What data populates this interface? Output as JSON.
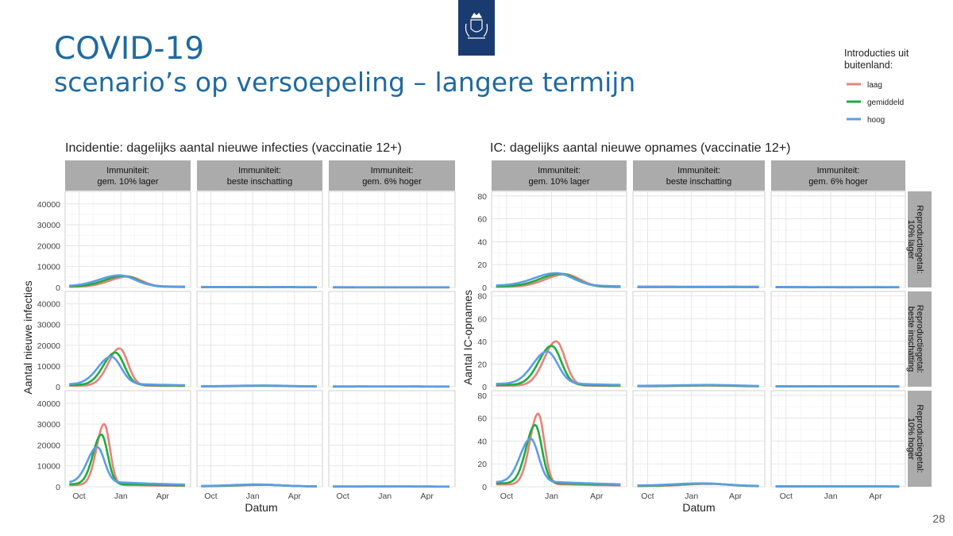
{
  "slide": {
    "title_line1": "COVID-19",
    "title_line2": "scenario’s op versoepeling – langere termijn",
    "page_number": "28",
    "logo_icon": "coat-of-arms-icon"
  },
  "legend": {
    "title_line1": "Introducties uit",
    "title_line2": "buitenland:",
    "items": [
      {
        "label": "laag",
        "color": "#e8827b"
      },
      {
        "label": "gemiddeld",
        "color": "#1fab3d"
      },
      {
        "label": "hoog",
        "color": "#5b9ee6"
      }
    ]
  },
  "facets": {
    "columns": [
      {
        "line1": "Immuniteit:",
        "line2": "gem. 10% lager"
      },
      {
        "line1": "Immuniteit:",
        "line2": "beste inschatting"
      },
      {
        "line1": "Immuniteit:",
        "line2": "gem. 6% hoger"
      }
    ],
    "rows": [
      {
        "line1": "Reproductiegetal:",
        "line2": "10% lager"
      },
      {
        "line1": "Reproductiegetal:",
        "line2": "beste inschatting"
      },
      {
        "line1": "Reproductiegetal:",
        "line2": "10% hoger"
      }
    ]
  },
  "chart_data": [
    {
      "type": "line",
      "title": "Incidentie: dagelijks aantal nieuwe infecties (vaccinatie 12+)",
      "xlabel": "Datum",
      "ylabel": "Aantal nieuwe infecties",
      "x_ticks": [
        "Oct",
        "Jan",
        "Apr"
      ],
      "x_tick_months": [
        1,
        4,
        7
      ],
      "xlim_months": [
        0,
        9
      ],
      "y_ticks": [
        0,
        10000,
        20000,
        30000,
        40000
      ],
      "ylim": [
        0,
        46000
      ],
      "grid": true,
      "panels": [
        {
          "row": 0,
          "col": 0,
          "series": [
            {
              "legend": "laag",
              "peak_month": 4.5,
              "peak": 5200,
              "width": 1.3,
              "base": 300
            },
            {
              "legend": "gemiddeld",
              "peak_month": 4.2,
              "peak": 5500,
              "width": 1.35,
              "base": 400
            },
            {
              "legend": "hoog",
              "peak_month": 3.9,
              "peak": 5800,
              "width": 1.45,
              "base": 600
            }
          ]
        },
        {
          "row": 0,
          "col": 1,
          "series": [
            {
              "legend": "laag",
              "peak_month": 4.5,
              "peak": 100,
              "width": 2.5,
              "base": 100
            },
            {
              "legend": "gemiddeld",
              "peak_month": 4.5,
              "peak": 150,
              "width": 2.5,
              "base": 150
            },
            {
              "legend": "hoog",
              "peak_month": 4.5,
              "peak": 200,
              "width": 2.5,
              "base": 250
            }
          ]
        },
        {
          "row": 0,
          "col": 2,
          "series": [
            {
              "legend": "laag",
              "peak_month": 4.5,
              "peak": 50,
              "width": 2.5,
              "base": 50
            },
            {
              "legend": "gemiddeld",
              "peak_month": 4.5,
              "peak": 80,
              "width": 2.5,
              "base": 80
            },
            {
              "legend": "hoog",
              "peak_month": 4.5,
              "peak": 120,
              "width": 2.5,
              "base": 150
            }
          ]
        },
        {
          "row": 1,
          "col": 0,
          "series": [
            {
              "legend": "laag",
              "peak_month": 3.9,
              "peak": 18500,
              "width": 0.8,
              "base": 500
            },
            {
              "legend": "gemiddeld",
              "peak_month": 3.6,
              "peak": 16500,
              "width": 0.85,
              "base": 800
            },
            {
              "legend": "hoog",
              "peak_month": 3.3,
              "peak": 14500,
              "width": 0.95,
              "base": 1200
            }
          ]
        },
        {
          "row": 1,
          "col": 1,
          "series": [
            {
              "legend": "laag",
              "peak_month": 4.8,
              "peak": 400,
              "width": 2.0,
              "base": 100
            },
            {
              "legend": "gemiddeld",
              "peak_month": 4.8,
              "peak": 500,
              "width": 2.0,
              "base": 150
            },
            {
              "legend": "hoog",
              "peak_month": 4.8,
              "peak": 600,
              "width": 2.0,
              "base": 200
            }
          ]
        },
        {
          "row": 1,
          "col": 2,
          "series": [
            {
              "legend": "laag",
              "peak_month": 4.5,
              "peak": 80,
              "width": 2.5,
              "base": 60
            },
            {
              "legend": "gemiddeld",
              "peak_month": 4.5,
              "peak": 100,
              "width": 2.5,
              "base": 90
            },
            {
              "legend": "hoog",
              "peak_month": 4.5,
              "peak": 130,
              "width": 2.5,
              "base": 150
            }
          ]
        },
        {
          "row": 2,
          "col": 0,
          "series": [
            {
              "legend": "laag",
              "peak_month": 2.8,
              "peak": 30000,
              "width": 0.55,
              "base": 800
            },
            {
              "legend": "gemiddeld",
              "peak_month": 2.6,
              "peak": 25000,
              "width": 0.6,
              "base": 1200
            },
            {
              "legend": "hoog",
              "peak_month": 2.3,
              "peak": 19000,
              "width": 0.7,
              "base": 2000
            }
          ]
        },
        {
          "row": 2,
          "col": 1,
          "series": [
            {
              "legend": "laag",
              "peak_month": 4.8,
              "peak": 900,
              "width": 1.8,
              "base": 200
            },
            {
              "legend": "gemiddeld",
              "peak_month": 4.6,
              "peak": 1000,
              "width": 1.8,
              "base": 250
            },
            {
              "legend": "hoog",
              "peak_month": 4.3,
              "peak": 1100,
              "width": 1.9,
              "base": 300
            }
          ]
        },
        {
          "row": 2,
          "col": 2,
          "series": [
            {
              "legend": "laag",
              "peak_month": 4.5,
              "peak": 100,
              "width": 2.5,
              "base": 80
            },
            {
              "legend": "gemiddeld",
              "peak_month": 4.5,
              "peak": 120,
              "width": 2.5,
              "base": 100
            },
            {
              "legend": "hoog",
              "peak_month": 4.5,
              "peak": 150,
              "width": 2.5,
              "base": 160
            }
          ]
        }
      ]
    },
    {
      "type": "line",
      "title": "IC: dagelijks aantal nieuwe opnames (vaccinatie 12+)",
      "xlabel": "Datum",
      "ylabel": "Aantal IC-opnames",
      "x_ticks": [
        "Oct",
        "Jan",
        "Apr"
      ],
      "x_tick_months": [
        1,
        4,
        7
      ],
      "xlim_months": [
        0,
        9
      ],
      "y_ticks": [
        0,
        20,
        40,
        60,
        80
      ],
      "ylim": [
        0,
        84
      ],
      "grid": true,
      "panels": [
        {
          "row": 0,
          "col": 0,
          "series": [
            {
              "legend": "laag",
              "peak_month": 4.9,
              "peak": 11.5,
              "width": 1.3,
              "base": 0.5
            },
            {
              "legend": "gemiddeld",
              "peak_month": 4.6,
              "peak": 12,
              "width": 1.35,
              "base": 0.8
            },
            {
              "legend": "hoog",
              "peak_month": 4.3,
              "peak": 12.5,
              "width": 1.45,
              "base": 1.5
            }
          ]
        },
        {
          "row": 0,
          "col": 1,
          "series": [
            {
              "legend": "laag",
              "peak_month": 5.0,
              "peak": 0.3,
              "width": 2.5,
              "base": 0.3
            },
            {
              "legend": "gemiddeld",
              "peak_month": 5.0,
              "peak": 0.5,
              "width": 2.5,
              "base": 0.5
            },
            {
              "legend": "hoog",
              "peak_month": 5.0,
              "peak": 0.7,
              "width": 2.5,
              "base": 0.8
            }
          ]
        },
        {
          "row": 0,
          "col": 2,
          "series": [
            {
              "legend": "laag",
              "peak_month": 5.0,
              "peak": 0.1,
              "width": 2.5,
              "base": 0.2
            },
            {
              "legend": "gemiddeld",
              "peak_month": 5.0,
              "peak": 0.2,
              "width": 2.5,
              "base": 0.3
            },
            {
              "legend": "hoog",
              "peak_month": 5.0,
              "peak": 0.3,
              "width": 2.5,
              "base": 0.5
            }
          ]
        },
        {
          "row": 1,
          "col": 0,
          "series": [
            {
              "legend": "laag",
              "peak_month": 4.3,
              "peak": 40,
              "width": 0.8,
              "base": 1
            },
            {
              "legend": "gemiddeld",
              "peak_month": 4.0,
              "peak": 36,
              "width": 0.85,
              "base": 1.5
            },
            {
              "legend": "hoog",
              "peak_month": 3.7,
              "peak": 31,
              "width": 0.95,
              "base": 2.5
            }
          ]
        },
        {
          "row": 1,
          "col": 1,
          "series": [
            {
              "legend": "laag",
              "peak_month": 5.2,
              "peak": 1,
              "width": 2.0,
              "base": 0.3
            },
            {
              "legend": "gemiddeld",
              "peak_month": 5.2,
              "peak": 1.3,
              "width": 2.0,
              "base": 0.5
            },
            {
              "legend": "hoog",
              "peak_month": 5.2,
              "peak": 1.6,
              "width": 2.0,
              "base": 0.8
            }
          ]
        },
        {
          "row": 1,
          "col": 2,
          "series": [
            {
              "legend": "laag",
              "peak_month": 5.0,
              "peak": 0.2,
              "width": 2.5,
              "base": 0.2
            },
            {
              "legend": "gemiddeld",
              "peak_month": 5.0,
              "peak": 0.3,
              "width": 2.5,
              "base": 0.3
            },
            {
              "legend": "hoog",
              "peak_month": 5.0,
              "peak": 0.4,
              "width": 2.5,
              "base": 0.5
            }
          ]
        },
        {
          "row": 2,
          "col": 0,
          "series": [
            {
              "legend": "laag",
              "peak_month": 3.1,
              "peak": 64,
              "width": 0.55,
              "base": 2
            },
            {
              "legend": "gemiddeld",
              "peak_month": 2.9,
              "peak": 54,
              "width": 0.6,
              "base": 3
            },
            {
              "legend": "hoog",
              "peak_month": 2.6,
              "peak": 42,
              "width": 0.7,
              "base": 4
            }
          ]
        },
        {
          "row": 2,
          "col": 1,
          "series": [
            {
              "legend": "laag",
              "peak_month": 5.2,
              "peak": 2.5,
              "width": 1.8,
              "base": 0.5
            },
            {
              "legend": "gemiddeld",
              "peak_month": 5.0,
              "peak": 2.8,
              "width": 1.8,
              "base": 0.7
            },
            {
              "legend": "hoog",
              "peak_month": 4.7,
              "peak": 3,
              "width": 1.9,
              "base": 1
            }
          ]
        },
        {
          "row": 2,
          "col": 2,
          "series": [
            {
              "legend": "laag",
              "peak_month": 5.0,
              "peak": 0.2,
              "width": 2.5,
              "base": 0.2
            },
            {
              "legend": "gemiddeld",
              "peak_month": 5.0,
              "peak": 0.3,
              "width": 2.5,
              "base": 0.3
            },
            {
              "legend": "hoog",
              "peak_month": 5.0,
              "peak": 0.4,
              "width": 2.5,
              "base": 0.5
            }
          ]
        }
      ]
    }
  ]
}
